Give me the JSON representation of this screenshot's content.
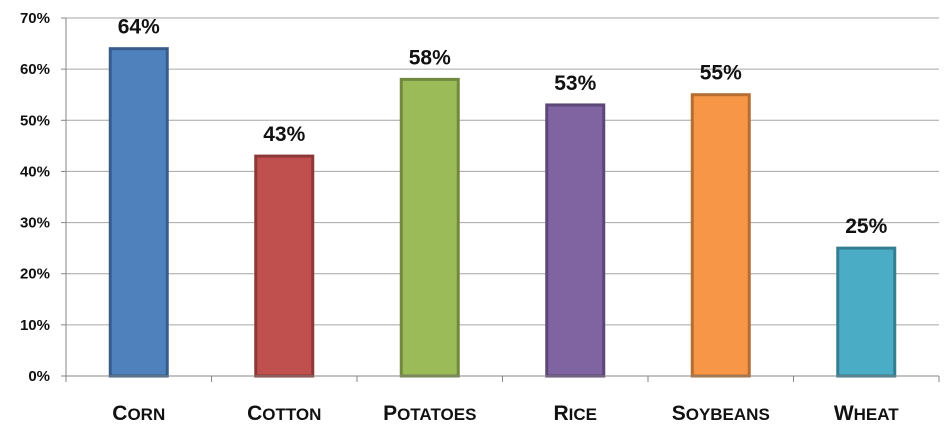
{
  "chart_data": {
    "type": "bar",
    "title": "",
    "xlabel": "",
    "ylabel": "",
    "categories": [
      "Corn",
      "Cotton",
      "Potatoes",
      "Rice",
      "Soybeans",
      "Wheat"
    ],
    "category_labels": [
      "CORN",
      "COTTON",
      "POTATOES",
      "RICE",
      "SOYBEANS",
      "WHEAT"
    ],
    "values": [
      64,
      43,
      58,
      53,
      55,
      25
    ],
    "data_labels": [
      "64%",
      "43%",
      "58%",
      "53%",
      "55%",
      "25%"
    ],
    "ylim": [
      0,
      70
    ],
    "yticks": [
      0,
      10,
      20,
      30,
      40,
      50,
      60,
      70
    ],
    "ytick_labels": [
      "0%",
      "10%",
      "20%",
      "30%",
      "40%",
      "50%",
      "60%",
      "70%"
    ],
    "grid": true,
    "legend": "none",
    "colors": {
      "fills": [
        "#4f81bd",
        "#c0504d",
        "#9bbb59",
        "#8064a2",
        "#f79646",
        "#4bacc6"
      ],
      "strokes": [
        "#385d8a",
        "#8c3836",
        "#71893f",
        "#5c4776",
        "#b66d31",
        "#357d91"
      ],
      "grid": "#a6a6a6",
      "axis": "#868686"
    }
  }
}
